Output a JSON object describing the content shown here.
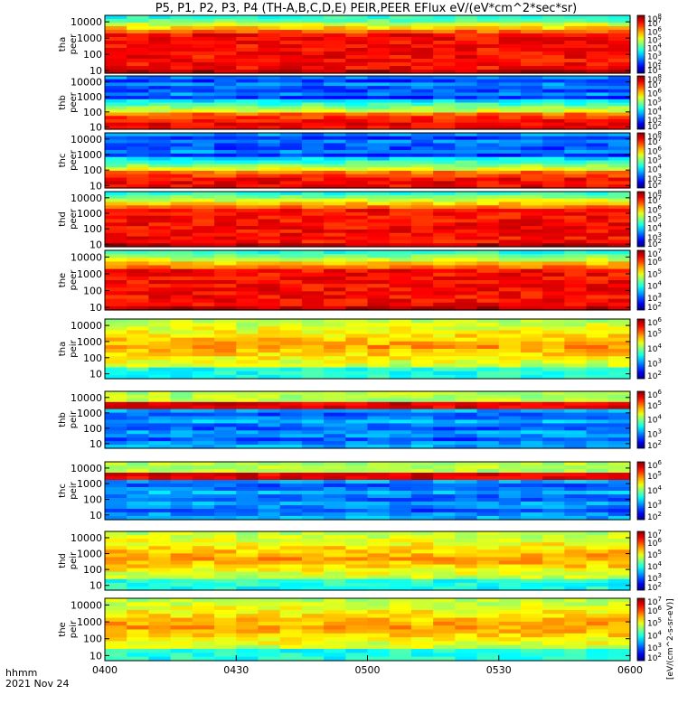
{
  "title": "P5, P1, P2, P3, P4 (TH-A,B,C,D,E) PEIR,PEER EFlux eV/(eV*cm^2*sec*sr)",
  "footer": {
    "label_line1": "hhmm",
    "label_line2": "2021 Nov 24"
  },
  "colorbar_label": "[eV/(cm^2-s-sr-eV)]",
  "chart_data": {
    "type": "heatmap",
    "title": "P5, P1, P2, P3, P4 (TH-A,B,C,D,E) PEIR,PEER EFlux eV/(eV*cm^2*sec*sr)",
    "x": {
      "label": "hhmm",
      "range": [
        "0400",
        "0600"
      ],
      "ticks": [
        "0400",
        "0430",
        "0500",
        "0530",
        "0600"
      ]
    },
    "date": "2021 Nov 24",
    "y_scale": "log",
    "y_ticks": [
      "10",
      "100",
      "1000",
      "10000"
    ],
    "z_units": "[eV/(cm^2-s-sr-eV)]",
    "panels": [
      {
        "probe": "tha",
        "species": "peer",
        "label": "tha\npeer",
        "ylim": [
          7,
          25000
        ],
        "cbar_ticks": [
          "10^1",
          "10^2",
          "10^3",
          "10^4",
          "10^5",
          "10^6",
          "10^7",
          "10^8"
        ],
        "cbar_range": [
          1,
          8
        ]
      },
      {
        "probe": "thb",
        "species": "peer",
        "label": "thb\npeer",
        "ylim": [
          7,
          25000
        ],
        "cbar_ticks": [
          "10^2",
          "10^3",
          "10^4",
          "10^5",
          "10^6",
          "10^7",
          "10^8"
        ],
        "cbar_range": [
          2,
          8
        ]
      },
      {
        "probe": "thc",
        "species": "peer",
        "label": "thc\npeer",
        "ylim": [
          7,
          25000
        ],
        "cbar_ticks": [
          "10^2",
          "10^3",
          "10^4",
          "10^5",
          "10^6",
          "10^7",
          "10^8"
        ],
        "cbar_range": [
          2,
          8
        ]
      },
      {
        "probe": "thd",
        "species": "peer",
        "label": "thd\npeer",
        "ylim": [
          7,
          25000
        ],
        "cbar_ticks": [
          "10^2",
          "10^3",
          "10^4",
          "10^5",
          "10^6",
          "10^7",
          "10^8"
        ],
        "cbar_range": [
          2,
          8
        ]
      },
      {
        "probe": "the",
        "species": "peer",
        "label": "the\npeer",
        "ylim": [
          7,
          25000
        ],
        "cbar_ticks": [
          "10^2",
          "10^3",
          "10^4",
          "10^5",
          "10^6",
          "10^7"
        ],
        "cbar_range": [
          2,
          7
        ]
      },
      {
        "probe": "tha",
        "species": "peir",
        "label": "tha\npeir",
        "ylim": [
          5,
          25000
        ],
        "cbar_ticks": [
          "10^2",
          "10^3",
          "10^4",
          "10^5",
          "10^6"
        ],
        "cbar_range": [
          2,
          6
        ]
      },
      {
        "probe": "thb",
        "species": "peir",
        "label": "thb\npeir",
        "ylim": [
          5,
          25000
        ],
        "cbar_ticks": [
          "10^2",
          "10^3",
          "10^4",
          "10^5",
          "10^6"
        ],
        "cbar_range": [
          2,
          6
        ]
      },
      {
        "probe": "thc",
        "species": "peir",
        "label": "thc\npeir",
        "ylim": [
          5,
          25000
        ],
        "cbar_ticks": [
          "10^2",
          "10^3",
          "10^4",
          "10^5",
          "10^6"
        ],
        "cbar_range": [
          2,
          6
        ]
      },
      {
        "probe": "thd",
        "species": "peir",
        "label": "thd\npeir",
        "ylim": [
          5,
          25000
        ],
        "cbar_ticks": [
          "10^2",
          "10^3",
          "10^4",
          "10^5",
          "10^6",
          "10^7"
        ],
        "cbar_range": [
          2,
          7
        ]
      },
      {
        "probe": "the",
        "species": "peir",
        "label": "the\npeir",
        "ylim": [
          5,
          25000
        ],
        "cbar_ticks": [
          "10^2",
          "10^3",
          "10^4",
          "10^5",
          "10^6",
          "10^7"
        ],
        "cbar_range": [
          2,
          7
        ]
      }
    ]
  }
}
